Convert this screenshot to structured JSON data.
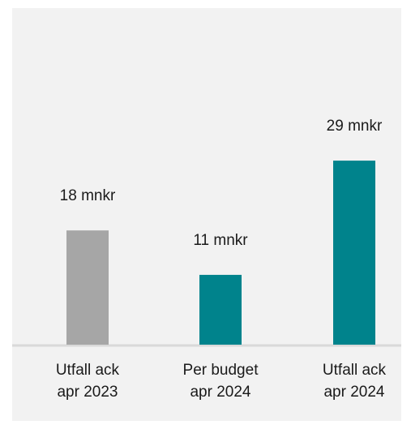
{
  "chart_data": {
    "type": "bar",
    "categories": [
      "Utfall ack\napr 2023",
      "Per budget\napr 2024",
      "Utfall ack\napr 2024"
    ],
    "values": [
      18,
      11,
      29
    ],
    "value_labels": [
      "18 mnkr",
      "11 mnkr",
      "29 mnkr"
    ],
    "colors": [
      "#a6a6a6",
      "#00838c",
      "#00838c"
    ],
    "ylim": [
      0,
      40
    ]
  }
}
